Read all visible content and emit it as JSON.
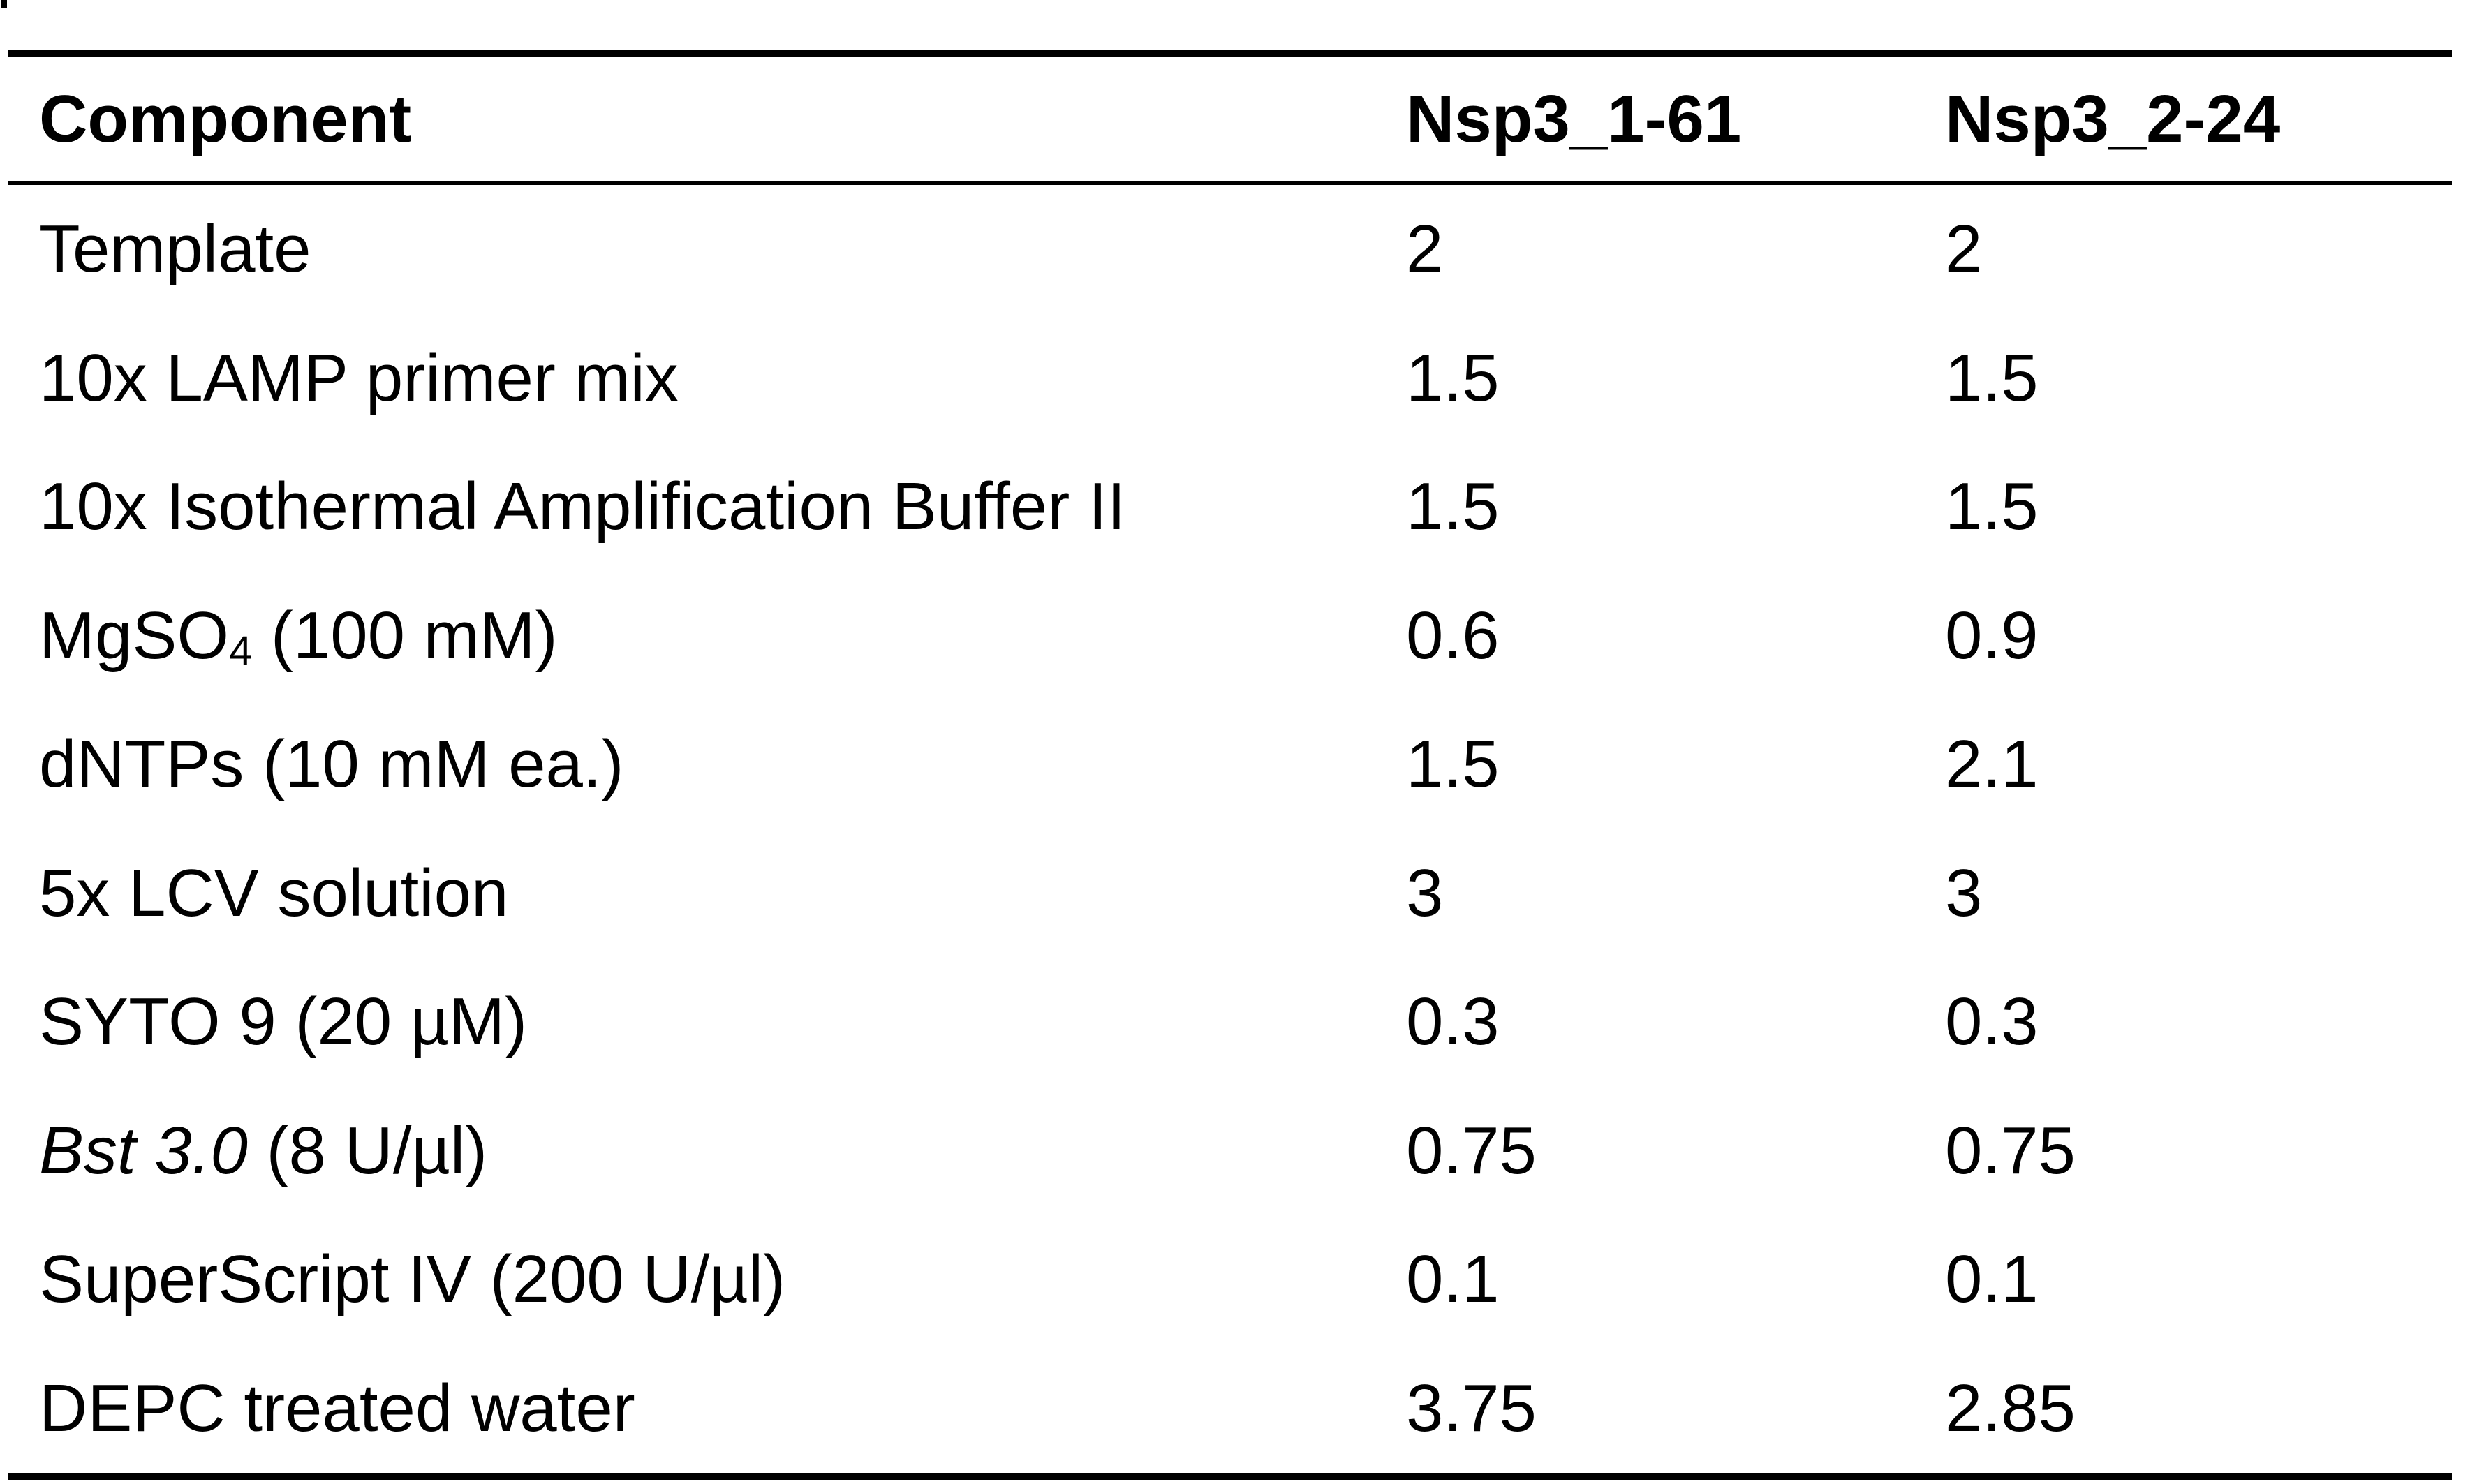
{
  "table": {
    "headers": {
      "component": "Component",
      "col1": "Nsp3_1-61",
      "col2": "Nsp3_2-24"
    },
    "rows": [
      {
        "component": "Template",
        "col1": "2",
        "col2": "2"
      },
      {
        "component": "10x LAMP primer mix",
        "col1": "1.5",
        "col2": "1.5"
      },
      {
        "component": "10x Isothermal Amplification Buffer II",
        "col1": "1.5",
        "col2": "1.5"
      },
      {
        "component_prefix": "MgSO",
        "component_subscript": "4",
        "component_suffix": " (100 mM)",
        "col1": "0.6",
        "col2": "0.9"
      },
      {
        "component": "dNTPs (10 mM ea.)",
        "col1": "1.5",
        "col2": "2.1"
      },
      {
        "component": "5x LCV solution",
        "col1": "3",
        "col2": "3"
      },
      {
        "component": "SYTO 9 (20 µM)",
        "col1": "0.3",
        "col2": "0.3"
      },
      {
        "component_italic": "Bst 3.0",
        "component_suffix": " (8 U/µl)",
        "col1": "0.75",
        "col2": "0.75"
      },
      {
        "component": "SuperScript IV (200 U/µl)",
        "col1": "0.1",
        "col2": "0.1"
      },
      {
        "component": "DEPC treated water",
        "col1": "3.75",
        "col2": "2.85"
      }
    ]
  }
}
